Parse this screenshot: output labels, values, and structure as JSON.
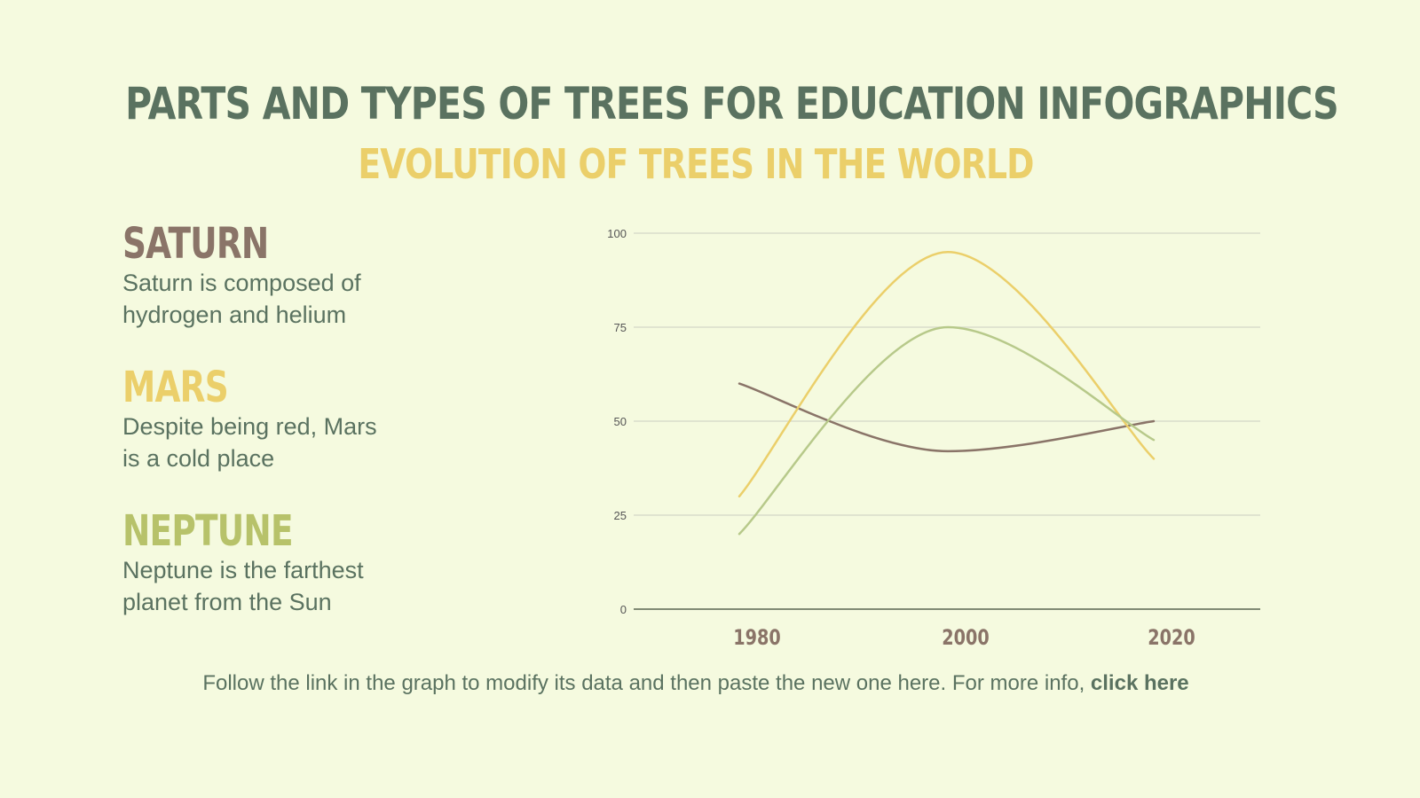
{
  "header": {
    "title": "PARTS AND TYPES OF TREES FOR EDUCATION INFOGRAPHICS",
    "subtitle": "EVOLUTION OF TREES IN THE WORLD"
  },
  "items": [
    {
      "heading": "SATURN",
      "text_line1": "Saturn is composed of",
      "text_line2": "hydrogen and helium",
      "color": "#8A7468"
    },
    {
      "heading": "MARS",
      "text_line1": "Despite being red, Mars",
      "text_line2": "is a cold place",
      "color": "#EBCF6A"
    },
    {
      "heading": "NEPTUNE",
      "text_line1": "Neptune is the farthest",
      "text_line2": "planet from the Sun",
      "color": "#B7C26A"
    }
  ],
  "footer": {
    "text": "Follow the link in the graph to modify its data and then paste the new one here. For more info, ",
    "link_label": "click here"
  },
  "colors": {
    "background": "#F5FADF",
    "title": "#5A7260",
    "subtitle": "#EBCF6A",
    "gridline": "#D9DDCB",
    "axis": "#5A6450",
    "tick_label": "#555555",
    "category_label": "#8A7468"
  },
  "chart_data": {
    "type": "line",
    "title": "",
    "xlabel": "",
    "ylabel": "",
    "categories": [
      "1980",
      "2000",
      "2020"
    ],
    "ylim": [
      0,
      100
    ],
    "yticks": [
      0,
      25,
      50,
      75,
      100
    ],
    "grid": true,
    "legend": "none",
    "smooth": true,
    "series": [
      {
        "name": "Saturn",
        "color": "#8A7468",
        "values": [
          60,
          42,
          50
        ]
      },
      {
        "name": "Mars",
        "color": "#EBCF6A",
        "values": [
          30,
          95,
          40
        ]
      },
      {
        "name": "Neptune",
        "color": "#B7C98A",
        "values": [
          20,
          75,
          45
        ]
      }
    ]
  }
}
